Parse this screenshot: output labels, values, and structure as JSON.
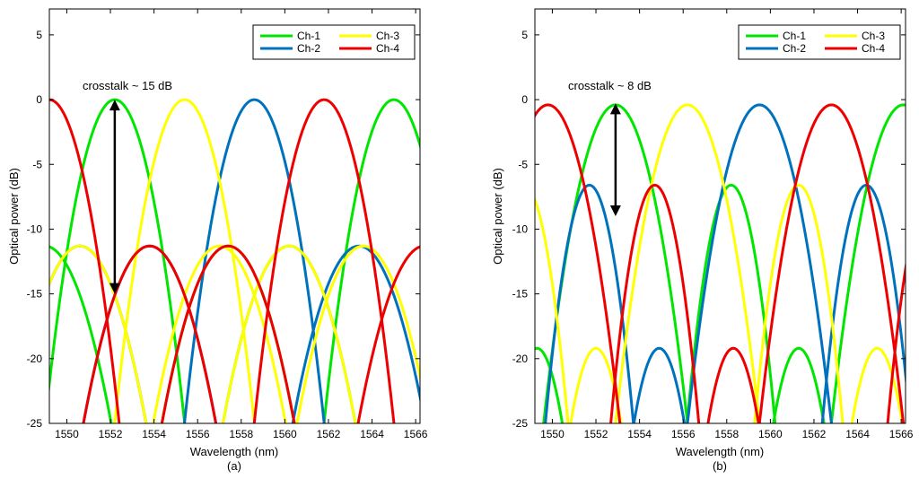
{
  "chart_data": [
    {
      "type": "line",
      "panel_label": "(a)",
      "xlabel": "Wavelength (nm)",
      "ylabel": "Optical power (dB)",
      "xlim": [
        1549.2,
        1566.2
      ],
      "ylim": [
        -25,
        7
      ],
      "xticks": [
        1550,
        1552,
        1554,
        1556,
        1558,
        1560,
        1562,
        1564,
        1566
      ],
      "yticks": [
        5,
        0,
        -5,
        -10,
        -15,
        -20,
        -25
      ],
      "grid": false,
      "legend_position": "top-right",
      "legend_columns": 2,
      "annotation": {
        "text": "crosstalk ~ 15 dB",
        "arrow_x": 1552.2,
        "arrow_from": 0,
        "arrow_to": -15
      },
      "model": {
        "period": 13.2,
        "mainlobe_halfwidth": 3.3,
        "sidelobe_peak": -11.3,
        "sidelobe_width": 3.2
      },
      "series": [
        {
          "name": "Ch-1",
          "color": "#00e600",
          "main_peaks": [
            1552.2,
            1565.0
          ],
          "main_level": 0,
          "side_peaks": [
            1549.0,
            1557.4,
            1560.2
          ],
          "side_level": -11.3
        },
        {
          "name": "Ch-2",
          "color": "#0072bd",
          "main_peaks": [
            1558.6
          ],
          "main_level": 0,
          "side_peaks": [
            1550.6,
            1553.8,
            1563.4
          ],
          "side_level": -11.3
        },
        {
          "name": "Ch-3",
          "color": "#ffff00",
          "main_peaks": [
            1555.4
          ],
          "main_level": 0,
          "side_peaks": [
            1550.6,
            1557.0,
            1560.2,
            1563.6
          ],
          "side_level": -11.3
        },
        {
          "name": "Ch-4",
          "color": "#ee0000",
          "main_peaks": [
            1549.2,
            1561.8
          ],
          "main_level": 0,
          "side_peaks": [
            1553.8,
            1557.4,
            1566.4
          ],
          "side_level": -11.3
        }
      ]
    },
    {
      "type": "line",
      "panel_label": "(b)",
      "xlabel": "Wavelength (nm)",
      "ylabel": "Optical power (dB)",
      "xlim": [
        1549.2,
        1566.2
      ],
      "ylim": [
        -25,
        7
      ],
      "xticks": [
        1550,
        1552,
        1554,
        1556,
        1558,
        1560,
        1562,
        1564,
        1566
      ],
      "yticks": [
        5,
        0,
        -5,
        -10,
        -15,
        -20,
        -25
      ],
      "grid": false,
      "legend_position": "top-right",
      "legend_columns": 2,
      "annotation": {
        "text": "crosstalk ~ 8 dB",
        "arrow_x": 1552.9,
        "arrow_from": -0.3,
        "arrow_to": -9
      },
      "model": {
        "period": 13.2,
        "mainlobe_halfwidth": 3.4,
        "sidelobe_width": 2.1,
        "small_lobe_width": 1.3
      },
      "series": [
        {
          "name": "Ch-1",
          "color": "#00e600",
          "main_peaks": [
            1552.9,
            1566.1
          ],
          "main_level": -0.4,
          "side_peaks": [
            1558.2
          ],
          "side_level": -6.6,
          "small_peaks": [
            1549.3,
            1561.3
          ],
          "small_level": -19.2
        },
        {
          "name": "Ch-2",
          "color": "#0072bd",
          "main_peaks": [
            1559.5
          ],
          "main_level": -0.4,
          "side_peaks": [
            1551.7,
            1564.4
          ],
          "side_level": -6.6,
          "small_peaks": [
            1554.9
          ],
          "small_level": -19.2
        },
        {
          "name": "Ch-3",
          "color": "#ffff00",
          "main_peaks": [
            1556.2
          ],
          "main_level": -0.4,
          "side_peaks": [
            1548.7,
            1561.3
          ],
          "side_level": -6.6,
          "small_peaks": [
            1552.0,
            1564.9
          ],
          "small_level": -19.2
        },
        {
          "name": "Ch-4",
          "color": "#ee0000",
          "main_peaks": [
            1549.8,
            1562.8
          ],
          "main_level": -0.4,
          "side_peaks": [
            1554.7,
            1567.4
          ],
          "side_level": -6.6,
          "small_peaks": [
            1558.3
          ],
          "small_level": -19.2
        }
      ]
    }
  ]
}
